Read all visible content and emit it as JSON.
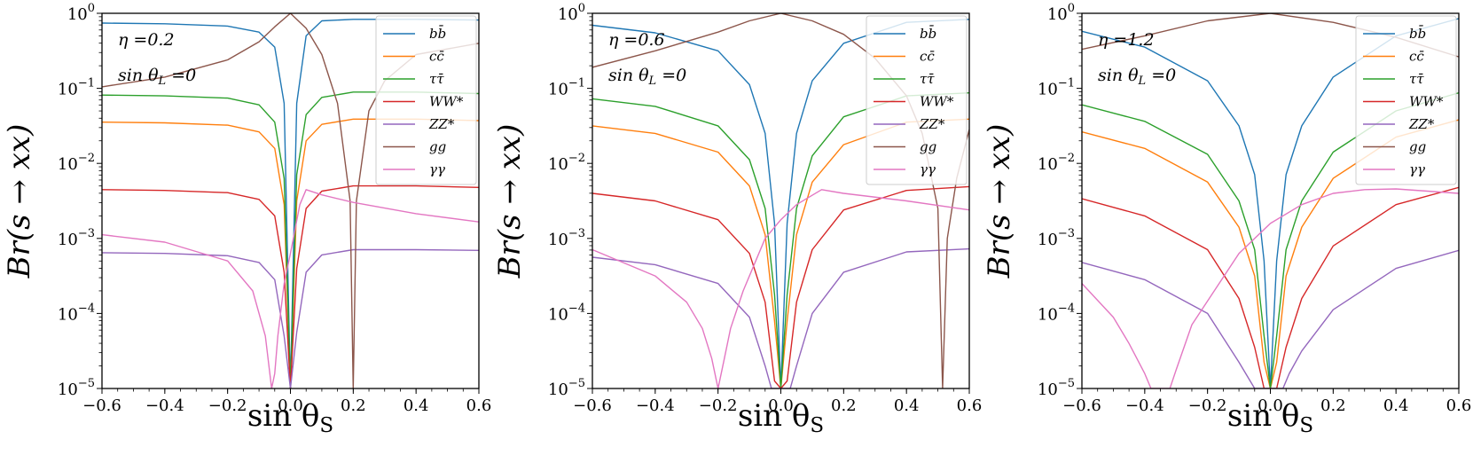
{
  "figure": {
    "description_hidden": false
  },
  "chart_data": [
    {
      "type": "line",
      "title": "",
      "xlabel": "sin θ_S",
      "ylabel": "Br(s → xx)",
      "xlim": [
        -0.6,
        0.6
      ],
      "ylim_log10": [
        -5,
        0
      ],
      "x_ticks": [
        "−0.6",
        "−0.4",
        "−0.2",
        "0.0",
        "0.2",
        "0.4",
        "0.6"
      ],
      "x_tick_values": [
        -0.6,
        -0.4,
        -0.2,
        0.0,
        0.2,
        0.4,
        0.6
      ],
      "y_tick_exponents": [
        -5,
        -4,
        -3,
        -2,
        -1,
        0
      ],
      "y_tick_base": "10",
      "annotations": [
        "η =0.2",
        "sin θ_L =0"
      ],
      "legend": {
        "placement": "top-right"
      },
      "series": [
        {
          "name": "bb̄",
          "color": "#1f77b4",
          "x": [
            -0.6,
            -0.4,
            -0.2,
            -0.1,
            -0.05,
            -0.02,
            0.0,
            0.02,
            0.05,
            0.1,
            0.2,
            0.4,
            0.6
          ],
          "log10_y": [
            -0.13,
            -0.14,
            -0.17,
            -0.25,
            -0.45,
            -1.2,
            -5,
            -1.2,
            -0.3,
            -0.1,
            -0.08,
            -0.08,
            -0.09
          ]
        },
        {
          "name": "cc̄",
          "color": "#ff7f0e",
          "x": [
            -0.6,
            -0.4,
            -0.2,
            -0.1,
            -0.05,
            -0.02,
            0.0,
            0.02,
            0.05,
            0.1,
            0.2,
            0.4,
            0.6
          ],
          "log10_y": [
            -1.45,
            -1.46,
            -1.49,
            -1.58,
            -1.8,
            -2.55,
            -5,
            -2.5,
            -1.7,
            -1.48,
            -1.41,
            -1.41,
            -1.43
          ]
        },
        {
          "name": "ττ̄",
          "color": "#2ca02c",
          "x": [
            -0.6,
            -0.4,
            -0.2,
            -0.1,
            -0.05,
            -0.02,
            0.0,
            0.02,
            0.05,
            0.1,
            0.2,
            0.4,
            0.6
          ],
          "log10_y": [
            -1.09,
            -1.1,
            -1.13,
            -1.22,
            -1.45,
            -2.2,
            -5,
            -2.15,
            -1.35,
            -1.12,
            -1.05,
            -1.05,
            -1.07
          ]
        },
        {
          "name": "WW*",
          "color": "#d62728",
          "x": [
            -0.6,
            -0.4,
            -0.2,
            -0.1,
            -0.05,
            -0.02,
            0.0,
            0.02,
            0.05,
            0.1,
            0.2,
            0.4,
            0.6
          ],
          "log10_y": [
            -2.35,
            -2.36,
            -2.39,
            -2.48,
            -2.7,
            -3.45,
            -5,
            -3.4,
            -2.6,
            -2.37,
            -2.3,
            -2.3,
            -2.32
          ]
        },
        {
          "name": "ZZ*",
          "color": "#9467bd",
          "x": [
            -0.6,
            -0.4,
            -0.2,
            -0.1,
            -0.05,
            -0.02,
            0.0,
            0.02,
            0.05,
            0.1,
            0.2,
            0.4,
            0.6
          ],
          "log10_y": [
            -3.19,
            -3.2,
            -3.23,
            -3.32,
            -3.55,
            -4.3,
            -5,
            -4.25,
            -3.45,
            -3.22,
            -3.15,
            -3.15,
            -3.16
          ]
        },
        {
          "name": "gg",
          "color": "#8c564b",
          "x": [
            -0.6,
            -0.4,
            -0.2,
            -0.1,
            -0.05,
            0.0,
            0.05,
            0.1,
            0.15,
            0.19,
            0.2,
            0.21,
            0.25,
            0.3,
            0.4,
            0.6
          ],
          "log10_y": [
            -0.98,
            -0.85,
            -0.62,
            -0.38,
            -0.18,
            0.0,
            -0.2,
            -0.55,
            -1.2,
            -2.5,
            -5,
            -2.5,
            -1.3,
            -0.9,
            -0.55,
            -0.4
          ]
        },
        {
          "name": "γγ",
          "color": "#e377c2",
          "x": [
            -0.6,
            -0.4,
            -0.2,
            -0.12,
            -0.08,
            -0.06,
            -0.05,
            -0.04,
            -0.02,
            0.0,
            0.03,
            0.05,
            0.1,
            0.2,
            0.4,
            0.6
          ],
          "log10_y": [
            -2.95,
            -3.05,
            -3.3,
            -3.7,
            -4.3,
            -5,
            -4.8,
            -4.3,
            -3.6,
            -3.2,
            -2.55,
            -2.35,
            -2.42,
            -2.52,
            -2.67,
            -2.78
          ]
        }
      ]
    },
    {
      "type": "line",
      "title": "",
      "xlabel": "sin θ_S",
      "ylabel": "Br(s → xx)",
      "xlim": [
        -0.6,
        0.6
      ],
      "ylim_log10": [
        -5,
        0
      ],
      "x_ticks": [
        "−0.6",
        "−0.4",
        "−0.2",
        "0.0",
        "0.2",
        "0.4",
        "0.6"
      ],
      "x_tick_values": [
        -0.6,
        -0.4,
        -0.2,
        0.0,
        0.2,
        0.4,
        0.6
      ],
      "y_tick_exponents": [
        -5,
        -4,
        -3,
        -2,
        -1,
        0
      ],
      "y_tick_base": "10",
      "annotations": [
        "η =0.6",
        "sin θ_L =0"
      ],
      "legend": {
        "placement": "top-right"
      },
      "series": [
        {
          "name": "bb̄",
          "color": "#1f77b4",
          "x": [
            -0.6,
            -0.4,
            -0.2,
            -0.1,
            -0.05,
            -0.02,
            0.0,
            0.02,
            0.05,
            0.1,
            0.2,
            0.4,
            0.6
          ],
          "log10_y": [
            -0.16,
            -0.26,
            -0.5,
            -0.95,
            -1.6,
            -2.8,
            -5,
            -2.8,
            -1.6,
            -0.9,
            -0.4,
            -0.12,
            -0.08
          ]
        },
        {
          "name": "cc̄",
          "color": "#ff7f0e",
          "x": [
            -0.6,
            -0.4,
            -0.2,
            -0.1,
            -0.05,
            -0.02,
            0.0,
            0.02,
            0.05,
            0.1,
            0.2,
            0.4,
            0.6
          ],
          "log10_y": [
            -1.5,
            -1.6,
            -1.85,
            -2.3,
            -2.95,
            -4.1,
            -5,
            -4.1,
            -2.95,
            -2.25,
            -1.75,
            -1.45,
            -1.41
          ]
        },
        {
          "name": "ττ̄",
          "color": "#2ca02c",
          "x": [
            -0.6,
            -0.4,
            -0.2,
            -0.1,
            -0.05,
            -0.02,
            0.0,
            0.02,
            0.05,
            0.1,
            0.2,
            0.4,
            0.6
          ],
          "log10_y": [
            -1.14,
            -1.24,
            -1.5,
            -1.95,
            -2.6,
            -3.75,
            -5,
            -3.75,
            -2.6,
            -1.9,
            -1.38,
            -1.1,
            -1.06
          ]
        },
        {
          "name": "WW*",
          "color": "#d62728",
          "x": [
            -0.6,
            -0.4,
            -0.2,
            -0.1,
            -0.05,
            -0.02,
            0.0,
            0.02,
            0.05,
            0.1,
            0.2,
            0.4,
            0.6
          ],
          "log10_y": [
            -2.4,
            -2.5,
            -2.75,
            -3.2,
            -3.85,
            -4.9,
            -5,
            -4.9,
            -3.85,
            -3.15,
            -2.62,
            -2.36,
            -2.31
          ]
        },
        {
          "name": "ZZ*",
          "color": "#9467bd",
          "x": [
            -0.6,
            -0.4,
            -0.2,
            -0.1,
            -0.05,
            -0.03,
            -0.01,
            0.0,
            0.01,
            0.03,
            0.05,
            0.1,
            0.2,
            0.4,
            0.6
          ],
          "log10_y": [
            -3.25,
            -3.35,
            -3.6,
            -4.05,
            -4.7,
            -5,
            -5,
            -5,
            -5,
            -5,
            -4.7,
            -4.0,
            -3.45,
            -3.18,
            -3.14
          ]
        },
        {
          "name": "gg",
          "color": "#8c564b",
          "x": [
            -0.6,
            -0.4,
            -0.2,
            -0.1,
            0.0,
            0.1,
            0.2,
            0.3,
            0.4,
            0.45,
            0.5,
            0.515,
            0.53,
            0.56,
            0.6
          ],
          "log10_y": [
            -0.72,
            -0.5,
            -0.25,
            -0.1,
            0.0,
            -0.1,
            -0.28,
            -0.6,
            -1.1,
            -1.6,
            -2.6,
            -5,
            -3.0,
            -2.2,
            -1.55
          ]
        },
        {
          "name": "γγ",
          "color": "#e377c2",
          "x": [
            -0.6,
            -0.4,
            -0.3,
            -0.25,
            -0.22,
            -0.2,
            -0.18,
            -0.16,
            -0.12,
            -0.05,
            0.0,
            0.05,
            0.13,
            0.2,
            0.4,
            0.6
          ],
          "log10_y": [
            -3.15,
            -3.5,
            -3.85,
            -4.2,
            -4.6,
            -5,
            -4.6,
            -4.2,
            -3.7,
            -3.0,
            -2.75,
            -2.55,
            -2.35,
            -2.4,
            -2.5,
            -2.62
          ]
        }
      ]
    },
    {
      "type": "line",
      "title": "",
      "xlabel": "sin θ_S",
      "ylabel": "Br(s → xx)",
      "xlim": [
        -0.6,
        0.6
      ],
      "ylim_log10": [
        -5,
        0
      ],
      "x_ticks": [
        "−0.6",
        "−0.4",
        "−0.2",
        "0.0",
        "0.2",
        "0.4",
        "0.6"
      ],
      "x_tick_values": [
        -0.6,
        -0.4,
        -0.2,
        0.0,
        0.2,
        0.4,
        0.6
      ],
      "y_tick_exponents": [
        -5,
        -4,
        -3,
        -2,
        -1,
        0
      ],
      "y_tick_base": "10",
      "annotations": [
        "η =1.2",
        "sin θ_L =0"
      ],
      "legend": {
        "placement": "top-right"
      },
      "series": [
        {
          "name": "bb̄",
          "color": "#1f77b4",
          "x": [
            -0.6,
            -0.4,
            -0.2,
            -0.1,
            -0.05,
            -0.02,
            0.0,
            0.02,
            0.05,
            0.1,
            0.2,
            0.4,
            0.6
          ],
          "log10_y": [
            -0.24,
            -0.45,
            -0.9,
            -1.5,
            -2.15,
            -3.3,
            -5,
            -3.3,
            -2.15,
            -1.5,
            -0.85,
            -0.3,
            -0.07
          ]
        },
        {
          "name": "cc̄",
          "color": "#ff7f0e",
          "x": [
            -0.6,
            -0.4,
            -0.2,
            -0.1,
            -0.05,
            -0.02,
            0.0,
            0.02,
            0.05,
            0.1,
            0.2,
            0.4,
            0.6
          ],
          "log10_y": [
            -1.58,
            -1.8,
            -2.25,
            -2.85,
            -3.5,
            -4.65,
            -5,
            -4.65,
            -3.5,
            -2.85,
            -2.2,
            -1.65,
            -1.42
          ]
        },
        {
          "name": "ττ̄",
          "color": "#2ca02c",
          "x": [
            -0.6,
            -0.4,
            -0.2,
            -0.1,
            -0.05,
            -0.02,
            0.0,
            0.02,
            0.05,
            0.1,
            0.2,
            0.4,
            0.6
          ],
          "log10_y": [
            -1.22,
            -1.44,
            -1.88,
            -2.5,
            -3.15,
            -4.3,
            -5,
            -4.3,
            -3.15,
            -2.5,
            -1.85,
            -1.3,
            -1.06
          ]
        },
        {
          "name": "WW*",
          "color": "#d62728",
          "x": [
            -0.6,
            -0.4,
            -0.2,
            -0.1,
            -0.05,
            -0.02,
            -0.01,
            0.0,
            0.01,
            0.02,
            0.05,
            0.1,
            0.2,
            0.4,
            0.6
          ],
          "log10_y": [
            -2.47,
            -2.7,
            -3.15,
            -3.8,
            -4.45,
            -5,
            -5,
            -5,
            -5,
            -5,
            -4.45,
            -3.8,
            -3.1,
            -2.55,
            -2.32
          ]
        },
        {
          "name": "ZZ*",
          "color": "#9467bd",
          "x": [
            -0.6,
            -0.4,
            -0.2,
            -0.1,
            -0.05,
            -0.02,
            0.0,
            0.02,
            0.04,
            0.06,
            0.1,
            0.2,
            0.4,
            0.6
          ],
          "log10_y": [
            -3.32,
            -3.55,
            -4.0,
            -4.65,
            -5,
            -5,
            -5,
            -5,
            -5,
            -4.8,
            -4.5,
            -3.95,
            -3.4,
            -3.16
          ]
        },
        {
          "name": "gg",
          "color": "#8c564b",
          "x": [
            -0.6,
            -0.4,
            -0.2,
            0.0,
            0.2,
            0.4,
            0.6
          ],
          "log10_y": [
            -0.48,
            -0.3,
            -0.1,
            0.0,
            -0.12,
            -0.32,
            -0.58
          ]
        },
        {
          "name": "γγ",
          "color": "#e377c2",
          "x": [
            -0.6,
            -0.5,
            -0.45,
            -0.4,
            -0.38,
            -0.36,
            -0.34,
            -0.32,
            -0.3,
            -0.25,
            -0.1,
            0.0,
            0.1,
            0.2,
            0.3,
            0.4,
            0.6
          ],
          "log10_y": [
            -3.6,
            -4.05,
            -4.4,
            -4.8,
            -5,
            -5,
            -5,
            -5,
            -4.75,
            -4.15,
            -3.2,
            -2.8,
            -2.55,
            -2.4,
            -2.35,
            -2.34,
            -2.4
          ]
        }
      ]
    }
  ]
}
